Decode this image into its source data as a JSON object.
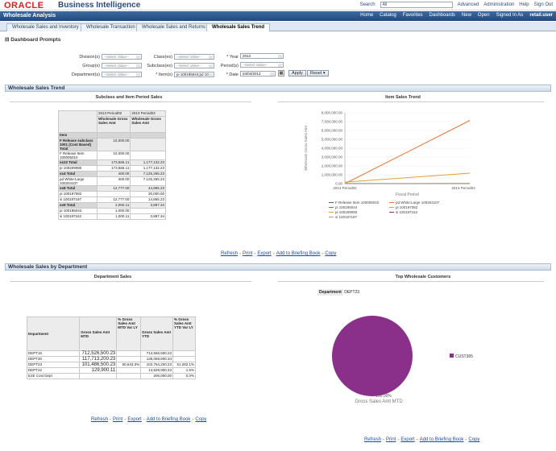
{
  "app": {
    "logo": "ORACLE",
    "product": "Business Intelligence"
  },
  "topnav": {
    "search_label": "Search",
    "search_value": "All",
    "advanced": "Advanced",
    "administration": "Administration",
    "help": "Help",
    "signout": "Sign Out"
  },
  "navbar": {
    "title": "Wholesale Analysis",
    "home": "Home",
    "catalog": "Catalog",
    "favorites": "Favorites",
    "dashboards": "Dashboards",
    "new": "New",
    "open": "Open",
    "signed_in": "Signed In As",
    "user": "retail.user"
  },
  "tabs": [
    {
      "label": "Wholesale Sales and Inventory"
    },
    {
      "label": "Wholesale Transaction"
    },
    {
      "label": "Wholesale Sales and Returns"
    },
    {
      "label": "Wholesale Sales Trend"
    }
  ],
  "prompts": {
    "heading": "Dashboard Prompts",
    "division": "Division(s)",
    "group": "Group(s)",
    "department": "Department(s)",
    "class": "Class(es)",
    "subclass": "Subclass(es)",
    "item": "Item(s)",
    "year": "Year",
    "period": "Period(s)",
    "date": "Date",
    "select_placeholder": "--Select Value--",
    "year_value": "2013",
    "item_value": "pi 100195044;pd 10",
    "date_value": "04/04/2013",
    "apply": "Apply",
    "reset": "Reset"
  },
  "section1": {
    "title": "Wholesale Sales Trend",
    "pivot_title": "Subclass and Item Period Sales",
    "chart_title": "Item Sales Trend",
    "col1": "2013 Period02",
    "col2": "2013 Period03",
    "measure": "Wholesale Gross Sales Amt",
    "item_header": "Item",
    "rows": [
      {
        "label": "F Release subclass 1001 (Cost Based) Total",
        "v1": "10,000.00",
        "v2": "",
        "kind": "total"
      },
      {
        "label": "F Release Item 100005010",
        "v1": "10,000.00",
        "v2": "",
        "kind": "item"
      },
      {
        "label": "ss22 Total",
        "v1": "173,566.11",
        "v2": "1,177,132.23",
        "kind": "total"
      },
      {
        "label": "pi 100209080",
        "v1": "173,566.11",
        "v2": "1,177,132.23",
        "kind": "item"
      },
      {
        "label": "ss4 Total",
        "v1": "400.00",
        "v2": "7,125,265.23",
        "kind": "total"
      },
      {
        "label": "pd White:Large 100204107",
        "v1": "400.00",
        "v2": "7,125,265.23",
        "kind": "item"
      },
      {
        "label": "ss8 Total",
        "v1": "12,777.00",
        "v2": "44,865.23",
        "kind": "total"
      },
      {
        "label": "pi 100197082",
        "v1": "",
        "v2": "30,000.00",
        "kind": "item"
      },
      {
        "label": "si 100197197",
        "v1": "12,777.00",
        "v2": "14,865.23",
        "kind": "item"
      },
      {
        "label": "ss9 Total",
        "v1": "2,000.11",
        "v2": "3,897.34",
        "kind": "total"
      },
      {
        "label": "pi 100195044",
        "v1": "1,000.00",
        "v2": "",
        "kind": "item"
      },
      {
        "label": "si 100197162",
        "v1": "1,000.11",
        "v2": "3,897.34",
        "kind": "item"
      }
    ],
    "links": [
      "Refresh",
      "Print",
      "Export",
      "Add to Briefing Book",
      "Copy"
    ]
  },
  "chart_data": {
    "type": "line",
    "title": "Item Sales Trend",
    "xlabel": "Fiscal Period",
    "ylabel": "Wholesale Gross Sales Amt",
    "categories": [
      "2013 Period02",
      "2013 Period03"
    ],
    "ylim": [
      0,
      8000000
    ],
    "yticks": [
      "0.00",
      "1,000,000.00",
      "2,000,000.00",
      "3,000,000.00",
      "4,000,000.00",
      "5,000,000.00",
      "6,000,000.00",
      "7,000,000.00",
      "8,000,000.00"
    ],
    "legend_position": "bottom",
    "series": [
      {
        "name": "F Release Item 100005010",
        "values": [
          10000,
          0
        ],
        "color": "#3a5fa8"
      },
      {
        "name": "pd White:Large 100204107",
        "values": [
          400,
          7125265.23
        ],
        "color": "#e8753a"
      },
      {
        "name": "pi 100195044",
        "values": [
          1000,
          0
        ],
        "color": "#3f9a3a"
      },
      {
        "name": "pi 100197082",
        "values": [
          0,
          30000
        ],
        "color": "#c8b028"
      },
      {
        "name": "pi 100209080",
        "values": [
          173566.11,
          1177132.23
        ],
        "color": "#e0a030"
      },
      {
        "name": "si 100197162",
        "values": [
          1000.11,
          3897.34
        ],
        "color": "#8a2f6a"
      },
      {
        "name": "si 100197197",
        "values": [
          12777,
          14865.23
        ],
        "color": "#a0a0a0"
      }
    ]
  },
  "section2": {
    "title": "Wholesale Sales by Department",
    "table_title": "Department Sales",
    "pie_title": "Top Wholesale Customers",
    "headers": [
      "Department",
      "Gross Sales Amt MTD",
      "% Gross Sales Amt MTD Var LY",
      "Gross Sales Amt YTD",
      "% Gross Sales Amt YTD Var LY"
    ],
    "rows": [
      {
        "dept": "DEPT16",
        "mtd": "712,526,500.23",
        "mtd_var": "",
        "ytd": "712,566,500.23",
        "ytd_var": ""
      },
      {
        "dept": "DEPT30",
        "mtd": "117,713,200.23",
        "mtd_var": "",
        "ytd": "135,069,800.34",
        "ytd_var": ""
      },
      {
        "dept": "DEPT23",
        "mtd": "101,486,500.23",
        "mtd_var": "50,643.3%",
        "ytd": "102,764,200.23",
        "ytd_var": "51,282.1%"
      },
      {
        "dept": "DEPT22",
        "mtd": "129,900.11",
        "mtd_var": "",
        "ytd": "14,629,900.23",
        "ytd_var": "1.6%"
      },
      {
        "dept": "E2E Cost Dept",
        "mtd": "",
        "mtd_var": "",
        "ytd": "200,000.00",
        "ytd_var": "0.0%"
      }
    ],
    "pie_filter_label": "Department",
    "pie_filter_value": "DEPT23",
    "pie_slice_label": "100.00%",
    "pie_measure": "Gross Sales Amt MTD",
    "pie_legend": "CUST365",
    "pie_color": "#8a2f8a",
    "links": [
      "Refresh",
      "Print",
      "Export",
      "Add to Briefing Book",
      "Copy"
    ]
  }
}
